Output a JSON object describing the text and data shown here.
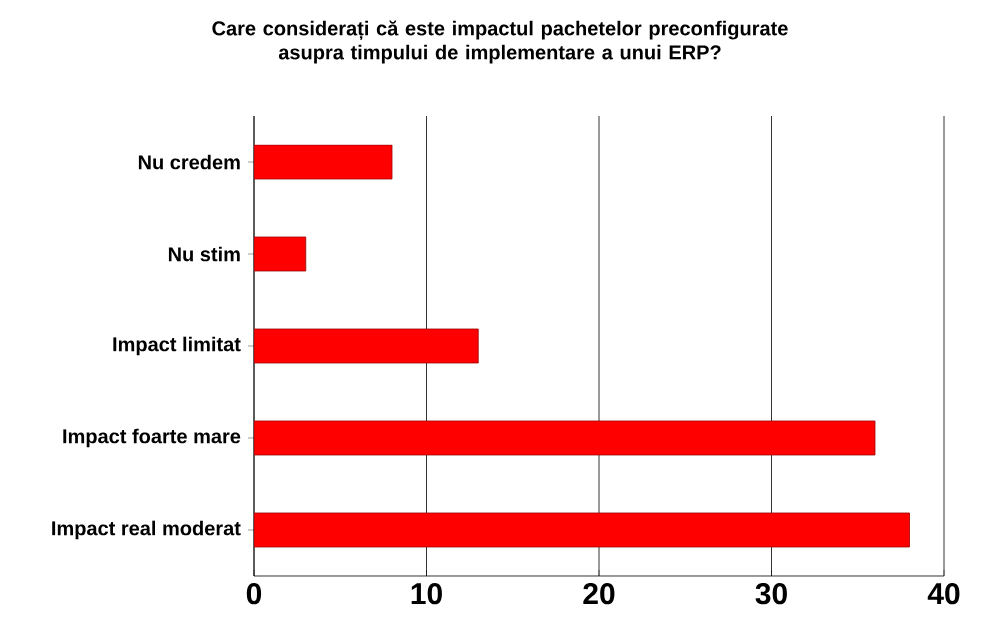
{
  "chart_data": {
    "type": "bar",
    "orientation": "horizontal",
    "title": "Care considerați că este impactul pachetelor preconfigurate asupra timpului de implementare a unui ERP?",
    "categories": [
      "Nu credem",
      "Nu stim",
      "Impact limitat",
      "Impact foarte mare",
      "Impact real moderat"
    ],
    "values": [
      8,
      3,
      13,
      36,
      38
    ],
    "color": "#ff0000",
    "xlim": [
      0,
      40
    ],
    "xticks": [
      0,
      10,
      20,
      30,
      40
    ],
    "grid": "x"
  }
}
